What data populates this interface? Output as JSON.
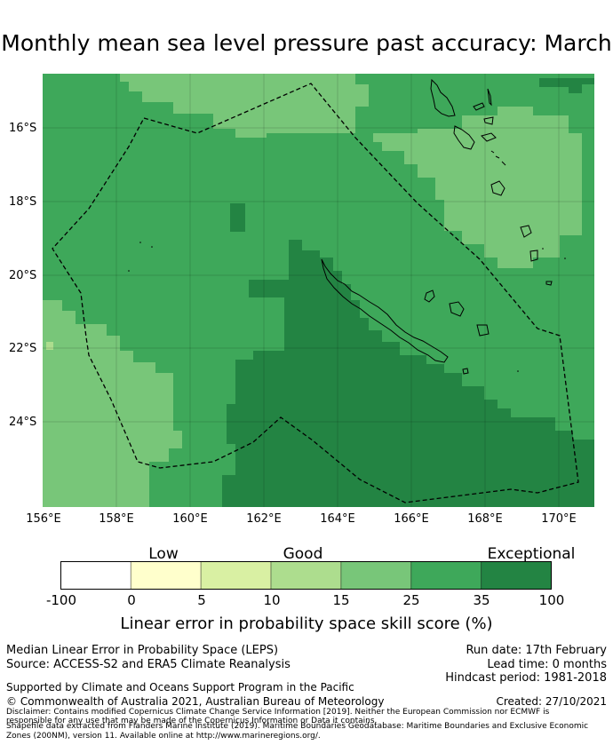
{
  "title": "Monthly mean sea level pressure past accuracy: March",
  "map": {
    "lat_labels": [
      "16°S",
      "18°S",
      "20°S",
      "22°S",
      "24°S"
    ],
    "lon_labels": [
      "156°E",
      "158°E",
      "160°E",
      "162°E",
      "164°E",
      "166°E",
      "168°E",
      "170°E"
    ],
    "region_outline": "dashed boundary line (EEZ)",
    "colors": {
      "bin_25_35": "#3ea85a",
      "bin_35_100": "#238443",
      "bin_15_25": "#78c679"
    }
  },
  "colorbar": {
    "category_labels": [
      "Low",
      "Good",
      "Exceptional"
    ],
    "ticks": [
      "-100",
      "0",
      "5",
      "10",
      "15",
      "25",
      "35",
      "100"
    ],
    "colors": [
      "#ffffff",
      "#ffffcc",
      "#d9f0a3",
      "#addd8e",
      "#78c679",
      "#3ea85a",
      "#238443"
    ],
    "title": "Linear error in probability space skill score (%)"
  },
  "info": {
    "line1": "Median Linear Error in Probability Space (LEPS)",
    "line2": "Source: ACCESS-S2 and ERA5 Climate Reanalysis",
    "run_date": "Run date: 17th February",
    "lead_time": "Lead time: 0 months",
    "hindcast": "Hindcast period: 1981-2018",
    "supported": "Supported by Climate and Oceans Support Program in the Pacific",
    "copyright": "© Commonwealth of Australia 2021, Australian Bureau of Meteorology",
    "created": "Created: 27/10/2021",
    "disclaimer1": "Disclaimer: Contains modified Copernicus Climate Change Service Information [2019]. Neither the European Commission nor ECMWF is",
    "disclaimer2": "responsible for any use that may be made of the Copernicus Information or Data it contains.",
    "disclaimer3": "Shapefile data extracted from Flanders Marine Institute (2019). Maritime Boundaries Geodatabase: Maritime Boundaries and Exclusive Economic",
    "disclaimer4": "Zones (200NM), version 11. Available online at http://www.marineregions.org/."
  }
}
